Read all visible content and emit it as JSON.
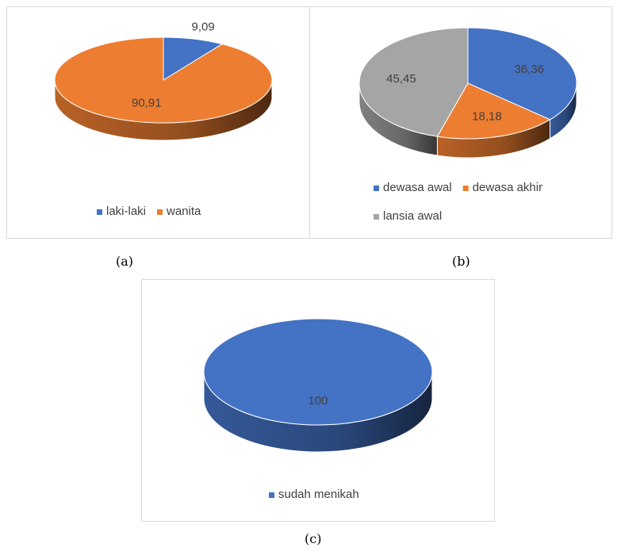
{
  "captions": {
    "a": "(a)",
    "b": "(b)",
    "c": "(c)"
  },
  "chart_data": [
    {
      "type": "pie",
      "id": "a",
      "categories": [
        "laki-laki",
        "wanita"
      ],
      "values": [
        9.09,
        90.91
      ],
      "data_labels": [
        "9,09",
        "90,91"
      ],
      "colors": [
        "#4472c4",
        "#ed7d31"
      ],
      "legend": "bottom",
      "style": "3d"
    },
    {
      "type": "pie",
      "id": "b",
      "categories": [
        "dewasa awal",
        "dewasa akhir",
        "lansia awal"
      ],
      "values": [
        36.36,
        18.18,
        45.45
      ],
      "data_labels": [
        "36,36",
        "18,18",
        "45,45"
      ],
      "colors": [
        "#4472c4",
        "#ed7d31",
        "#a5a5a5"
      ],
      "legend": "bottom",
      "style": "3d"
    },
    {
      "type": "pie",
      "id": "c",
      "categories": [
        "sudah menikah"
      ],
      "values": [
        100
      ],
      "data_labels": [
        "100"
      ],
      "colors": [
        "#4472c4"
      ],
      "legend": "bottom",
      "style": "3d"
    }
  ]
}
